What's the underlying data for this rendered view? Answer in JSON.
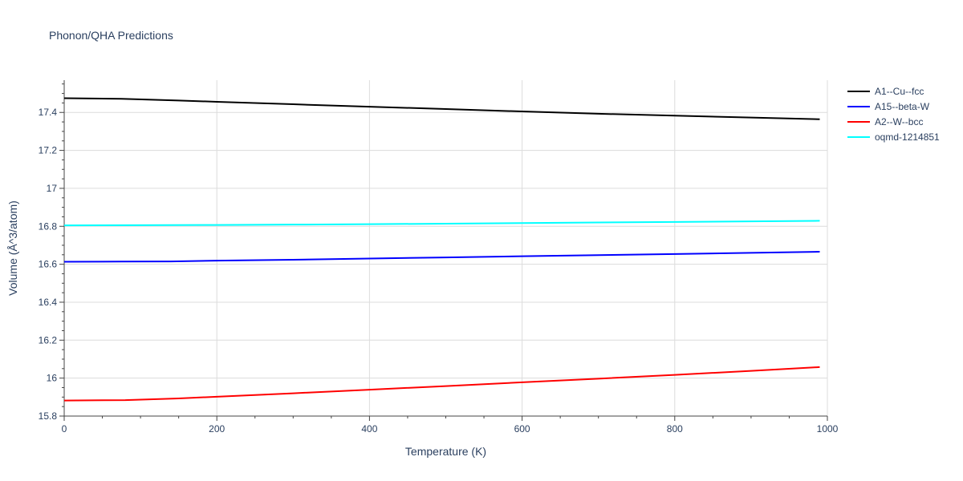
{
  "chart_data": {
    "type": "line",
    "title": "Phonon/QHA Predictions",
    "xlabel": "Temperature (K)",
    "ylabel": "Volume (Å^3/atom)",
    "xlim": [
      0,
      1000
    ],
    "ylim": [
      15.8,
      17.57
    ],
    "x_ticks": [
      0,
      200,
      400,
      600,
      800,
      1000
    ],
    "y_ticks": [
      15.8,
      16,
      16.2,
      16.4,
      16.6,
      16.8,
      17,
      17.2,
      17.4
    ],
    "grid": true,
    "legend_position": "top-right",
    "series": [
      {
        "name": "A1--Cu--fcc",
        "color": "#000000",
        "x": [
          0,
          75,
          150,
          200,
          300,
          400,
          500,
          600,
          700,
          800,
          900,
          990
        ],
        "y": [
          17.475,
          17.472,
          17.463,
          17.456,
          17.443,
          17.43,
          17.418,
          17.405,
          17.393,
          17.383,
          17.373,
          17.364
        ]
      },
      {
        "name": "A15--beta-W",
        "color": "#0000ff",
        "x": [
          0,
          75,
          140,
          200,
          300,
          400,
          500,
          600,
          700,
          800,
          900,
          990
        ],
        "y": [
          16.613,
          16.614,
          16.615,
          16.619,
          16.624,
          16.63,
          16.636,
          16.642,
          16.648,
          16.654,
          16.66,
          16.666
        ]
      },
      {
        "name": "A2--W--bcc",
        "color": "#ff0000",
        "x": [
          0,
          80,
          150,
          200,
          300,
          400,
          500,
          600,
          700,
          800,
          900,
          990
        ],
        "y": [
          15.882,
          15.884,
          15.893,
          15.902,
          15.92,
          15.939,
          15.958,
          15.978,
          15.997,
          16.017,
          16.038,
          16.058
        ]
      },
      {
        "name": "oqmd-1214851",
        "color": "#00ffff",
        "x": [
          0,
          100,
          200,
          300,
          400,
          500,
          600,
          700,
          800,
          900,
          990
        ],
        "y": [
          16.805,
          16.806,
          16.807,
          16.809,
          16.811,
          16.814,
          16.817,
          16.82,
          16.823,
          16.826,
          16.829
        ]
      }
    ]
  }
}
